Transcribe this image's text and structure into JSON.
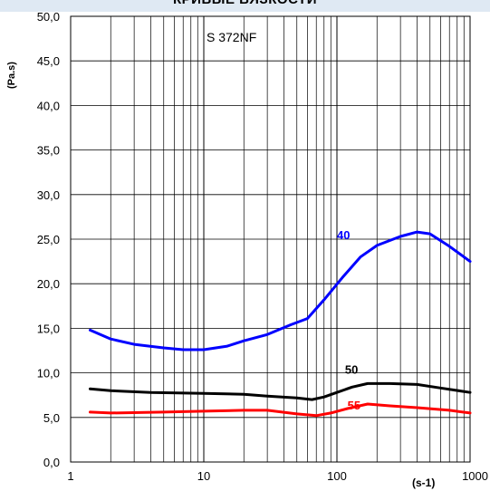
{
  "chart_data": {
    "type": "line",
    "title": "КРИВЫЕ ВЯЗКОСТИ",
    "subtitle": "S 372NF",
    "ylabel": "(Pa.s)",
    "xlabel": "(s-1)",
    "x_scale": "log",
    "xlim": [
      1,
      1000
    ],
    "ylim": [
      0,
      50
    ],
    "x_ticks": [
      {
        "value": 1,
        "label": "1"
      },
      {
        "value": 10,
        "label": "10"
      },
      {
        "value": 100,
        "label": "100"
      },
      {
        "value": 1000,
        "label": "1000"
      }
    ],
    "y_ticks": [
      {
        "value": 0,
        "label": "0,0"
      },
      {
        "value": 5,
        "label": "5,0"
      },
      {
        "value": 10,
        "label": "10,0"
      },
      {
        "value": 15,
        "label": "15,0"
      },
      {
        "value": 20,
        "label": "20,0"
      },
      {
        "value": 25,
        "label": "25,0"
      },
      {
        "value": 30,
        "label": "30,0"
      },
      {
        "value": 35,
        "label": "35,0"
      },
      {
        "value": 40,
        "label": "40,0"
      },
      {
        "value": 45,
        "label": "45,0"
      },
      {
        "value": 50,
        "label": "50,0"
      }
    ],
    "grid": true,
    "series": [
      {
        "name": "40",
        "color": "#0000ff",
        "label_at": [
          100,
          25
        ],
        "points": [
          [
            1.4,
            14.8
          ],
          [
            2,
            13.8
          ],
          [
            3,
            13.2
          ],
          [
            5,
            12.8
          ],
          [
            7,
            12.6
          ],
          [
            10,
            12.6
          ],
          [
            15,
            13
          ],
          [
            20,
            13.6
          ],
          [
            30,
            14.3
          ],
          [
            45,
            15.4
          ],
          [
            60,
            16.1
          ],
          [
            80,
            18.2
          ],
          [
            110,
            20.7
          ],
          [
            150,
            23
          ],
          [
            200,
            24.3
          ],
          [
            300,
            25.3
          ],
          [
            400,
            25.8
          ],
          [
            500,
            25.6
          ],
          [
            700,
            24.2
          ],
          [
            1000,
            22.5
          ]
        ]
      },
      {
        "name": "50",
        "color": "#000000",
        "label_at": [
          115,
          9.9
        ],
        "points": [
          [
            1.4,
            8.2
          ],
          [
            2,
            8
          ],
          [
            4,
            7.8
          ],
          [
            10,
            7.7
          ],
          [
            20,
            7.6
          ],
          [
            30,
            7.4
          ],
          [
            50,
            7.2
          ],
          [
            65,
            7
          ],
          [
            80,
            7.3
          ],
          [
            100,
            7.8
          ],
          [
            130,
            8.4
          ],
          [
            170,
            8.8
          ],
          [
            250,
            8.8
          ],
          [
            400,
            8.7
          ],
          [
            600,
            8.3
          ],
          [
            1000,
            7.8
          ]
        ]
      },
      {
        "name": "55",
        "color": "#ff0000",
        "label_at": [
          120,
          5.9
        ],
        "points": [
          [
            1.4,
            5.6
          ],
          [
            2,
            5.5
          ],
          [
            5,
            5.6
          ],
          [
            10,
            5.7
          ],
          [
            20,
            5.8
          ],
          [
            30,
            5.8
          ],
          [
            50,
            5.4
          ],
          [
            70,
            5.2
          ],
          [
            90,
            5.5
          ],
          [
            120,
            6
          ],
          [
            170,
            6.5
          ],
          [
            250,
            6.3
          ],
          [
            400,
            6.1
          ],
          [
            700,
            5.8
          ],
          [
            1000,
            5.5
          ]
        ]
      }
    ]
  }
}
